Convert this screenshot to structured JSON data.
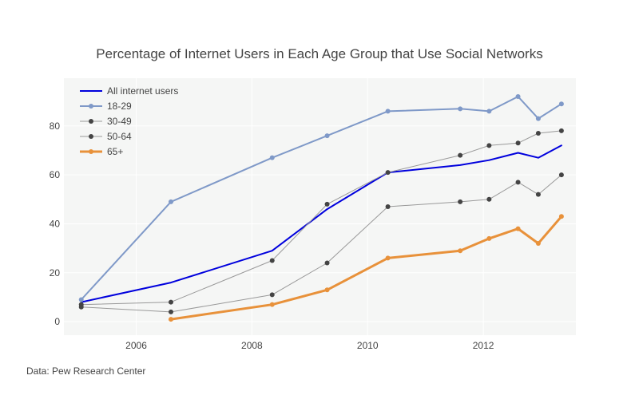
{
  "chart_data": {
    "type": "line",
    "title": "Percentage of Internet Users in Each Age Group that Use Social Networks",
    "xlabel": "",
    "ylabel": "",
    "xlim": [
      2004.75,
      2013.6
    ],
    "ylim": [
      -5.5,
      99.5
    ],
    "x_ticks": [
      2006,
      2008,
      2010,
      2012
    ],
    "y_ticks": [
      0,
      20,
      40,
      60,
      80
    ],
    "grid": true,
    "legend_position": "top-left",
    "series": [
      {
        "name": "All internet users",
        "color": "#0000dd",
        "markers": false,
        "width": 2,
        "x": [
          2005.05,
          2006.6,
          2008.35,
          2009.3,
          2010.35,
          2011.6,
          2012.1,
          2012.6,
          2012.95,
          2013.35
        ],
        "y": [
          8,
          16,
          29,
          46,
          61,
          64,
          66,
          69,
          67,
          72
        ]
      },
      {
        "name": "18-29",
        "color": "#7f99c8",
        "markers": true,
        "width": 2,
        "x": [
          2005.05,
          2006.6,
          2008.35,
          2009.3,
          2010.35,
          2011.6,
          2012.1,
          2012.6,
          2012.95,
          2013.35
        ],
        "y": [
          9,
          49,
          67,
          76,
          86,
          87,
          86,
          92,
          83,
          89
        ]
      },
      {
        "name": "30-49",
        "color": "#999999",
        "marker_color": "#444444",
        "markers": true,
        "width": 1,
        "x": [
          2005.05,
          2006.6,
          2008.35,
          2009.3,
          2010.35,
          2011.6,
          2012.1,
          2012.6,
          2012.95,
          2013.35
        ],
        "y": [
          7,
          8,
          25,
          48,
          61,
          68,
          72,
          73,
          77,
          78
        ]
      },
      {
        "name": "50-64",
        "color": "#999999",
        "marker_color": "#444444",
        "markers": true,
        "width": 1,
        "x": [
          2005.05,
          2006.6,
          2008.35,
          2009.3,
          2010.35,
          2011.6,
          2012.1,
          2012.6,
          2012.95,
          2013.35
        ],
        "y": [
          6,
          4,
          11,
          24,
          47,
          49,
          50,
          57,
          52,
          60
        ]
      },
      {
        "name": "65+",
        "color": "#e8913a",
        "markers": true,
        "width": 3,
        "x": [
          2006.6,
          2008.35,
          2009.3,
          2010.35,
          2011.6,
          2012.1,
          2012.6,
          2012.95,
          2013.35
        ],
        "y": [
          1,
          7,
          13,
          26,
          29,
          34,
          38,
          32,
          43
        ]
      }
    ]
  },
  "source_note": "Data: Pew Research Center",
  "colors": {
    "plot_background": "#f5f6f5",
    "grid": "#ffffff",
    "text": "#444444"
  }
}
